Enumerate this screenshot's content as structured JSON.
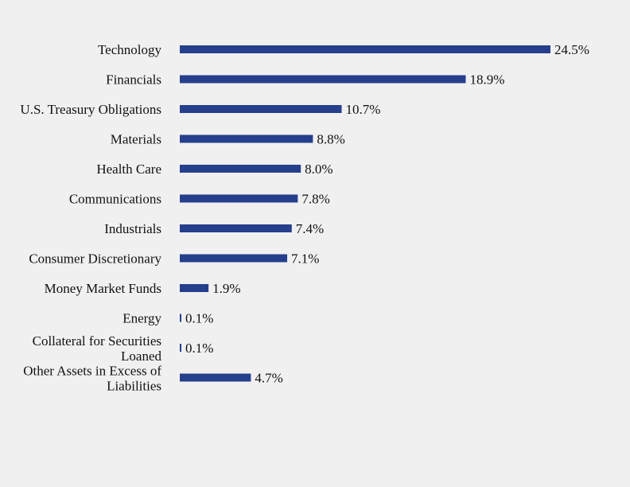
{
  "chart_data": {
    "type": "bar",
    "orientation": "horizontal",
    "categories": [
      [
        "Technology"
      ],
      [
        "Financials"
      ],
      [
        "U.S. Treasury Obligations"
      ],
      [
        "Materials"
      ],
      [
        "Health Care"
      ],
      [
        "Communications"
      ],
      [
        "Industrials"
      ],
      [
        "Consumer Discretionary"
      ],
      [
        "Money Market Funds"
      ],
      [
        "Energy"
      ],
      [
        "Collateral for Securities",
        "Loaned"
      ],
      [
        "Other Assets in Excess of",
        "Liabilities"
      ]
    ],
    "values": [
      24.5,
      18.9,
      10.7,
      8.8,
      8.0,
      7.8,
      7.4,
      7.1,
      1.9,
      0.1,
      0.1,
      4.7
    ],
    "labels": [
      "24.5%",
      "18.9%",
      "10.7%",
      "8.8%",
      "8.0%",
      "7.8%",
      "7.4%",
      "7.1%",
      "1.9%",
      "0.1%",
      "0.1%",
      "4.7%"
    ],
    "title": "",
    "xlabel": "",
    "ylabel": "",
    "grid": false,
    "bar_color": "#263f8c",
    "background": "#f0f0f0"
  }
}
